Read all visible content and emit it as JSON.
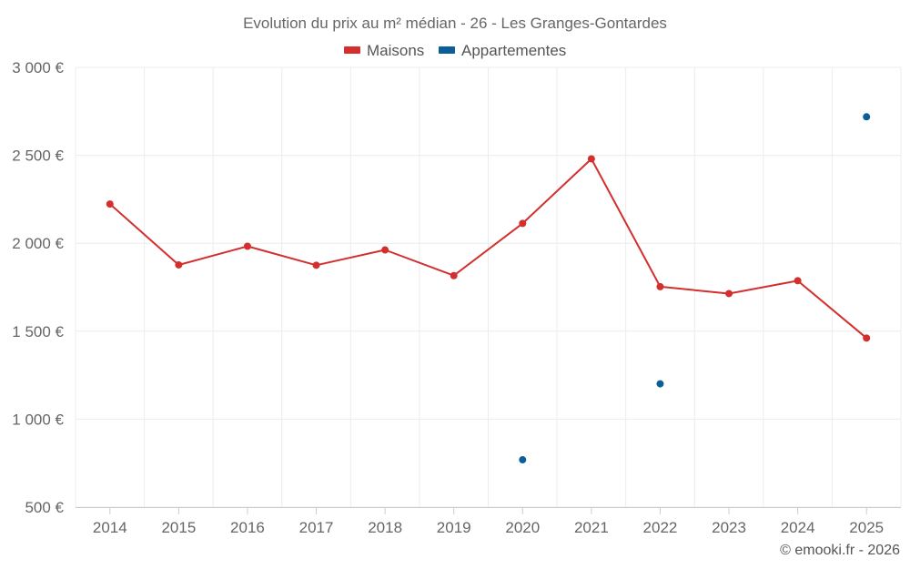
{
  "chart_data": {
    "type": "line",
    "title": "Evolution du prix au m² médian - 26 - Les Granges-Gontardes",
    "categories": [
      "2014",
      "2015",
      "2016",
      "2017",
      "2018",
      "2019",
      "2020",
      "2021",
      "2022",
      "2023",
      "2024",
      "2025"
    ],
    "series": [
      {
        "name": "Maisons",
        "color": "#d32f2f",
        "values": [
          2223,
          1877,
          1983,
          1875,
          1962,
          1816,
          2113,
          2480,
          1753,
          1714,
          1787,
          1461
        ]
      },
      {
        "name": "Appartementes",
        "color": "#0a5f99",
        "values": [
          null,
          null,
          null,
          null,
          null,
          null,
          769,
          null,
          1201,
          null,
          null,
          2719
        ]
      }
    ],
    "ylim": [
      500,
      3000
    ],
    "yticks": [
      500,
      1000,
      1500,
      2000,
      2500,
      3000
    ],
    "ytick_labels": [
      "500 €",
      "1 000 €",
      "1 500 €",
      "2 000 €",
      "2 500 €",
      "3 000 €"
    ],
    "legend_position": "top-center",
    "grid": true,
    "xlabel": "",
    "ylabel": ""
  },
  "credit": "© emooki.fr - 2026"
}
